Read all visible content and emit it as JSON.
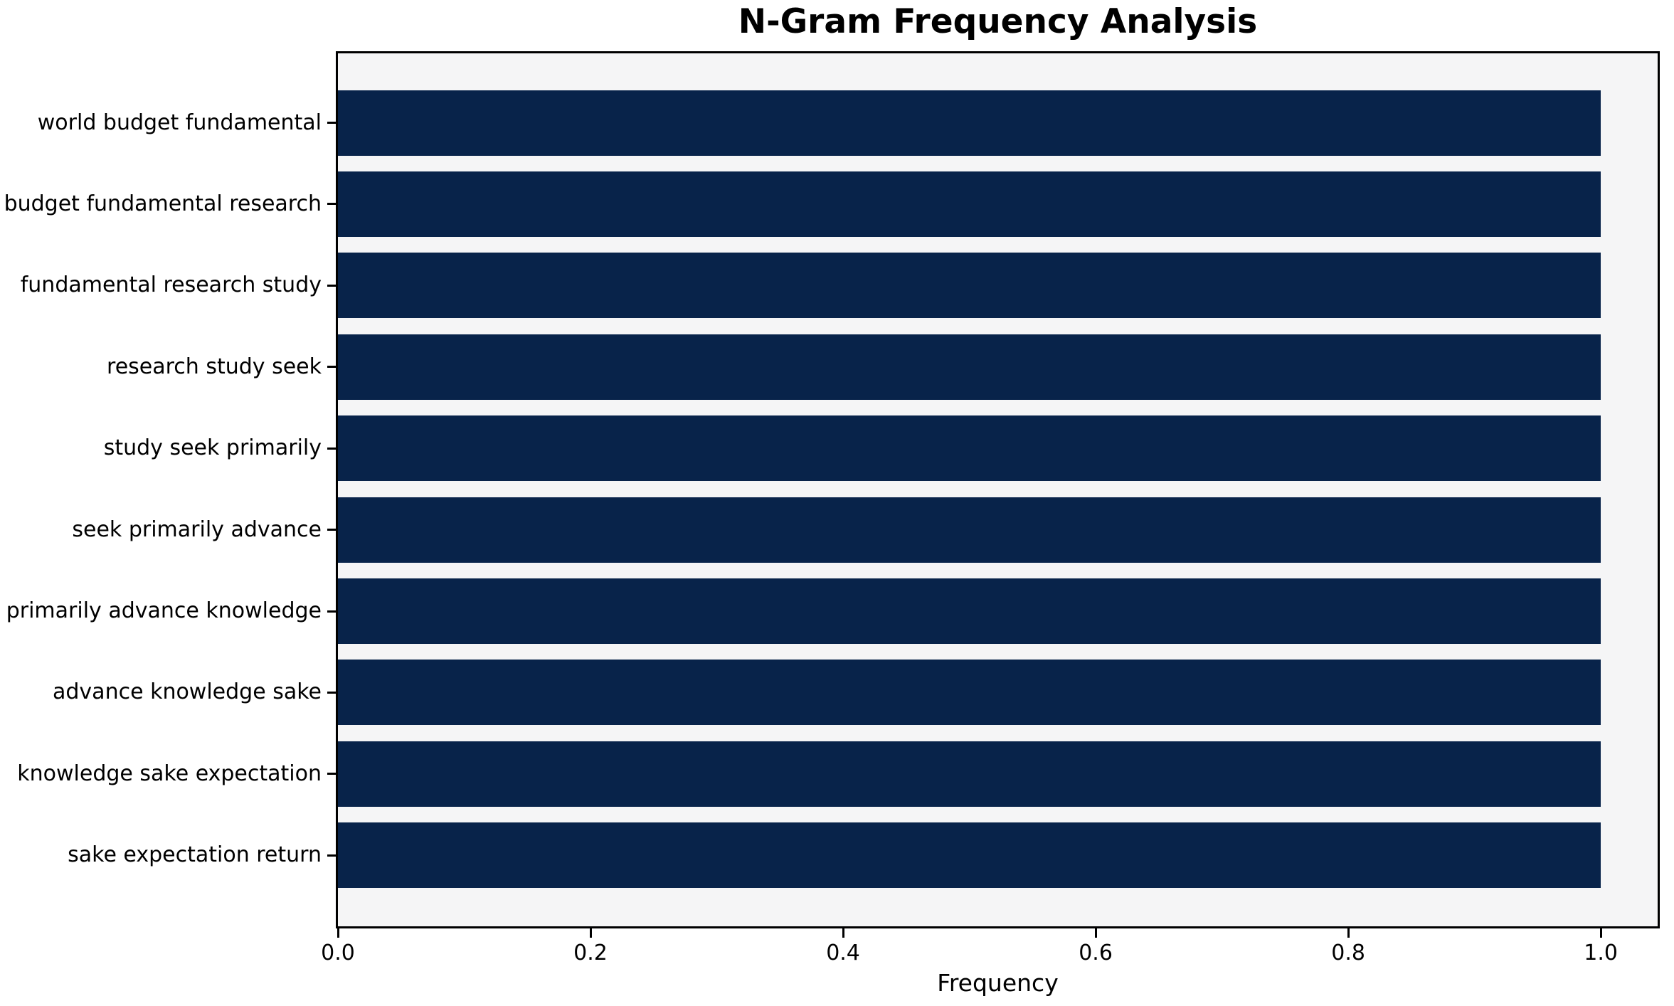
{
  "chart_data": {
    "type": "bar",
    "orientation": "horizontal",
    "title": "N-Gram Frequency Analysis",
    "xlabel": "Frequency",
    "ylabel": "",
    "categories": [
      "world budget fundamental",
      "budget fundamental research",
      "fundamental research study",
      "research study seek",
      "study seek primarily",
      "seek primarily advance",
      "primarily advance knowledge",
      "advance knowledge sake",
      "knowledge sake expectation",
      "sake expectation return"
    ],
    "values": [
      1.0,
      1.0,
      1.0,
      1.0,
      1.0,
      1.0,
      1.0,
      1.0,
      1.0,
      1.0
    ],
    "xlim": [
      0,
      1.045
    ],
    "xticks": [
      0.0,
      0.2,
      0.4,
      0.6,
      0.8,
      1.0
    ],
    "xtick_labels": [
      "0.0",
      "0.2",
      "0.4",
      "0.6",
      "0.8",
      "1.0"
    ],
    "grid": false,
    "legend": null,
    "colors": {
      "bar": "#08234a",
      "plot_background": "#f5f5f6",
      "figure_background": "#ffffff",
      "spine": "#000000",
      "text": "#000000"
    }
  }
}
